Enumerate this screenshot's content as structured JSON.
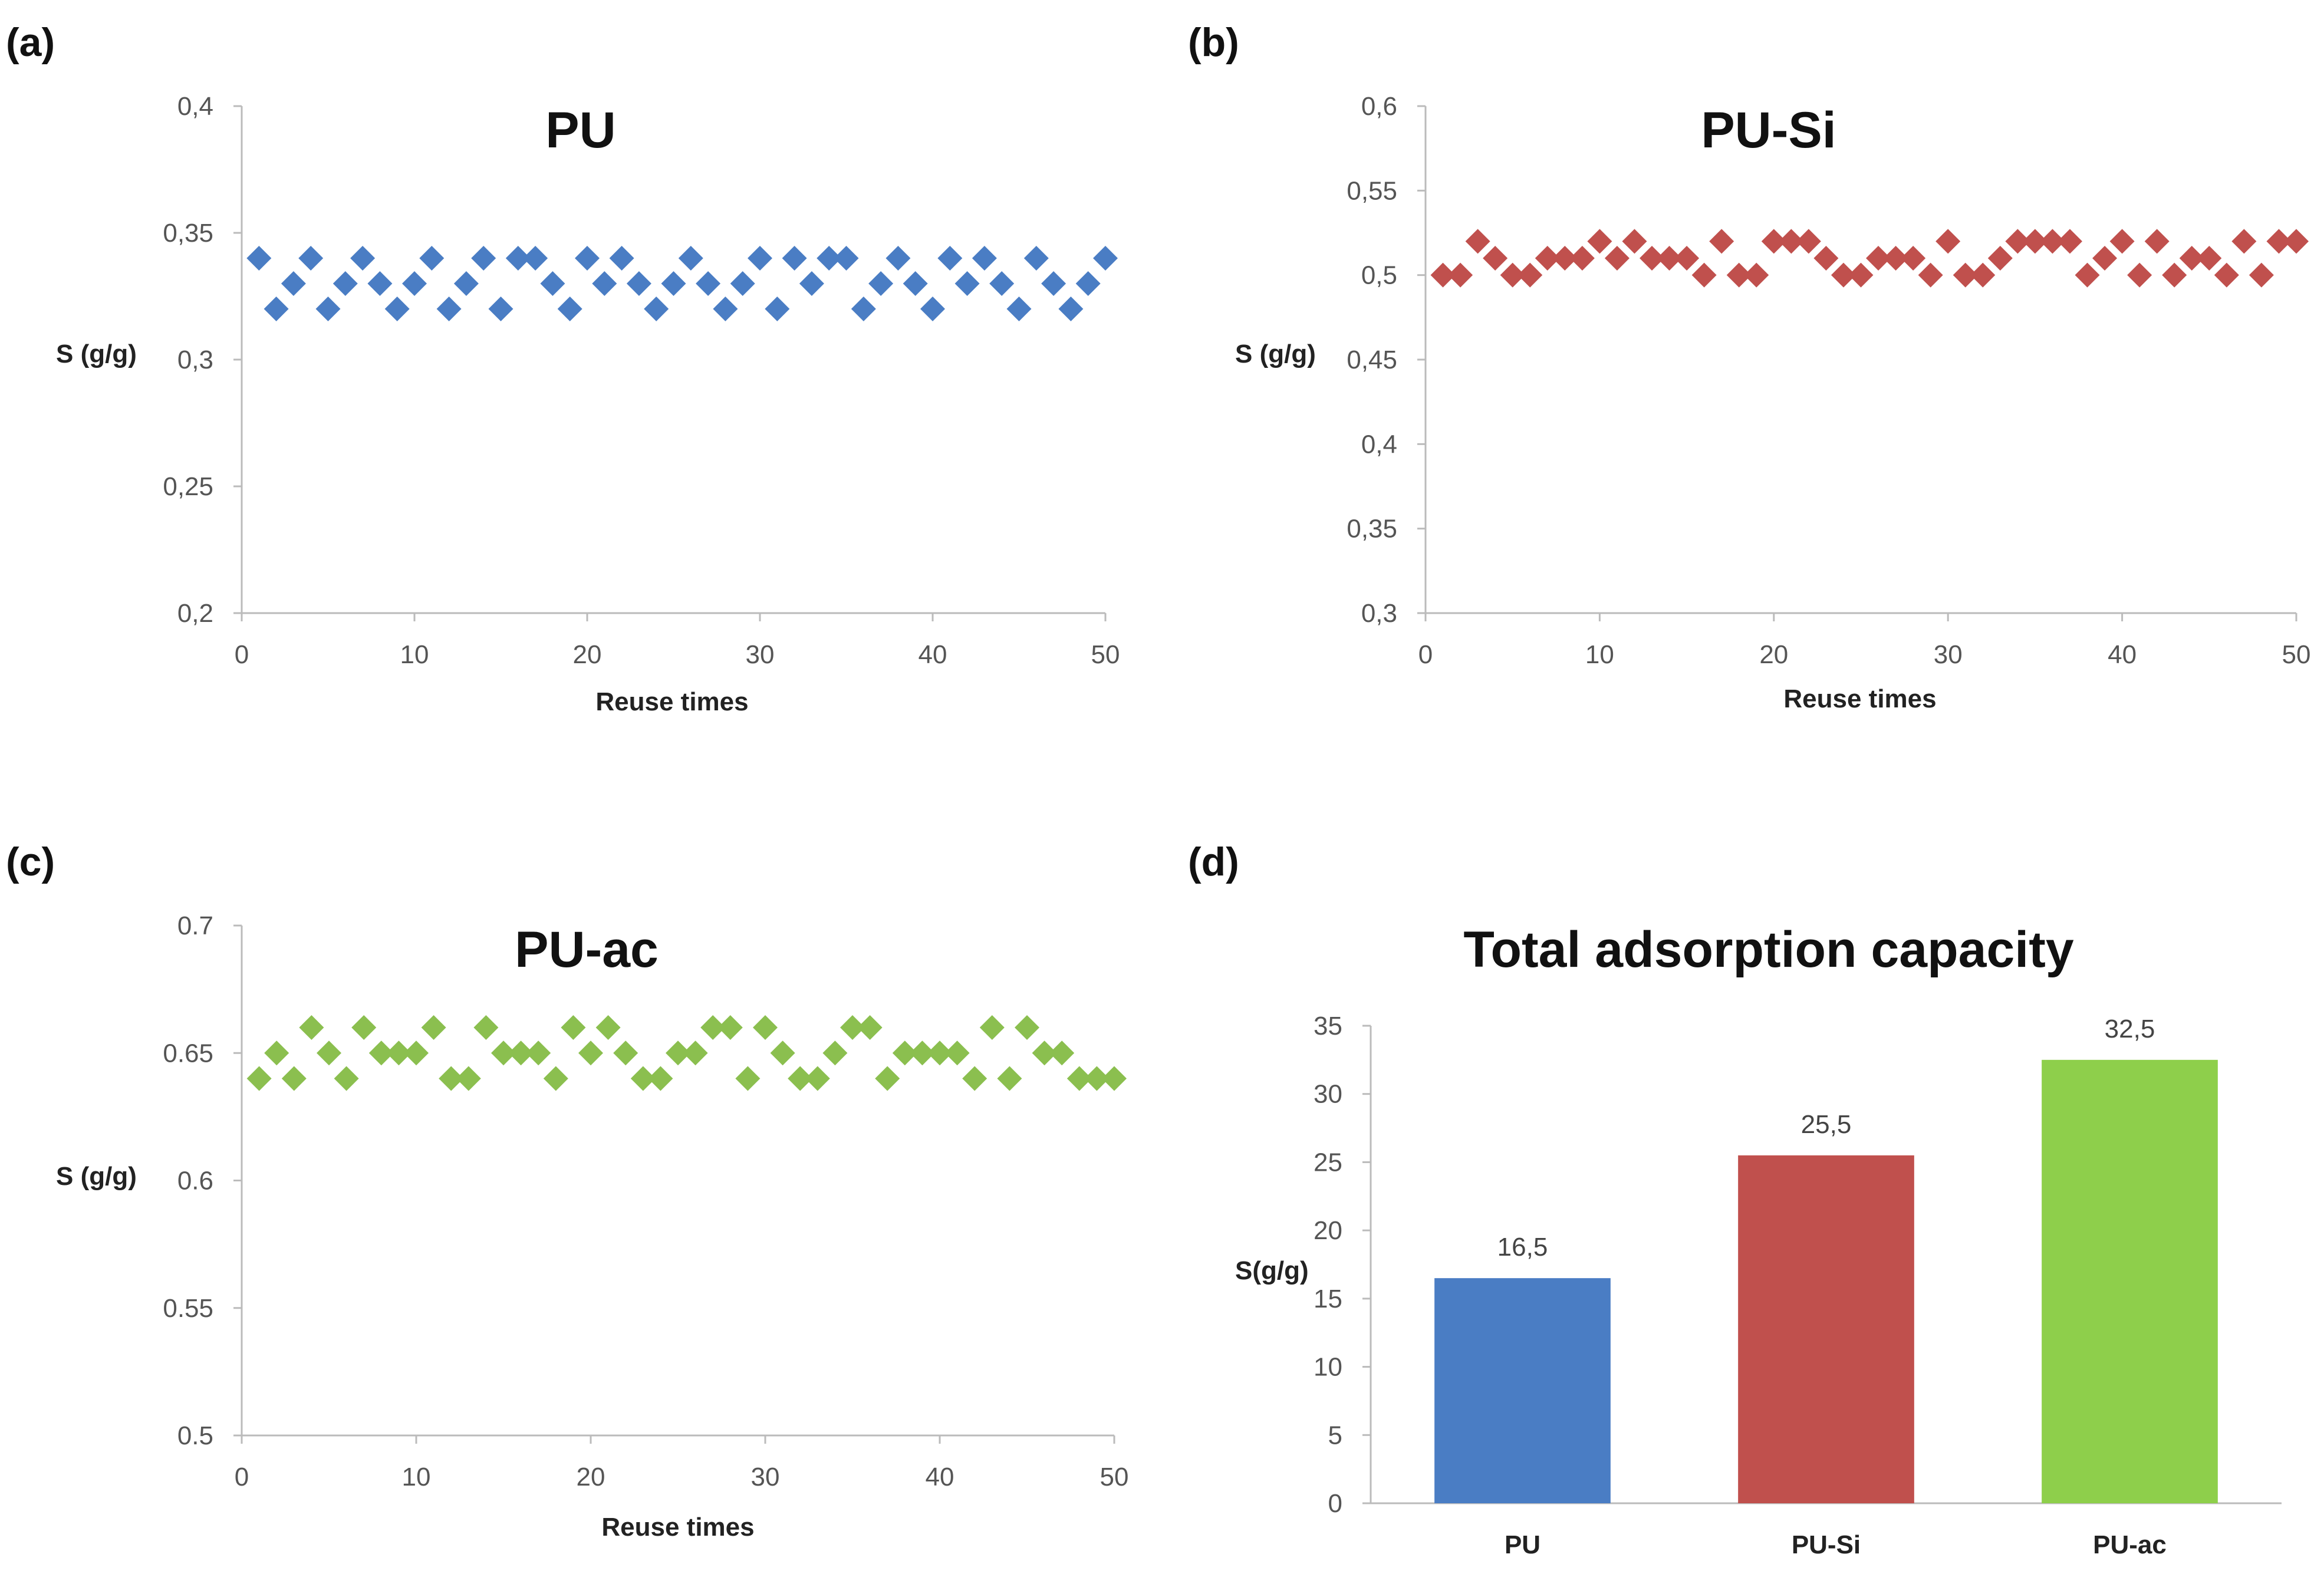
{
  "chart_data": [
    {
      "panel": "(a)",
      "type": "scatter",
      "title": "PU",
      "xlabel": "Reuse times",
      "ylabel": "S (g/g)",
      "xlim": [
        0,
        50
      ],
      "ylim": [
        0.2,
        0.4
      ],
      "xticks": [
        0,
        10,
        20,
        30,
        40,
        50
      ],
      "yticks": [
        0.2,
        0.25,
        0.3,
        0.35,
        0.4
      ],
      "yticklabels": [
        "0,2",
        "0,25",
        "0,3",
        "0,35",
        "0,4"
      ],
      "color": "#4a7dc4",
      "series": [
        {
          "name": "PU",
          "x": [
            1,
            2,
            3,
            4,
            5,
            6,
            7,
            8,
            9,
            10,
            11,
            12,
            13,
            14,
            15,
            16,
            17,
            18,
            19,
            20,
            21,
            22,
            23,
            24,
            25,
            26,
            27,
            28,
            29,
            30,
            31,
            32,
            33,
            34,
            35,
            36,
            37,
            38,
            39,
            40,
            41,
            42,
            43,
            44,
            45,
            46,
            47,
            48,
            49,
            50
          ],
          "values": [
            0.34,
            0.32,
            0.33,
            0.34,
            0.32,
            0.33,
            0.34,
            0.33,
            0.32,
            0.33,
            0.34,
            0.32,
            0.33,
            0.34,
            0.32,
            0.34,
            0.34,
            0.33,
            0.32,
            0.34,
            0.33,
            0.34,
            0.33,
            0.32,
            0.33,
            0.34,
            0.33,
            0.32,
            0.33,
            0.34,
            0.32,
            0.34,
            0.33,
            0.34,
            0.34,
            0.32,
            0.33,
            0.34,
            0.33,
            0.32,
            0.34,
            0.33,
            0.34,
            0.33,
            0.32,
            0.34,
            0.33,
            0.32,
            0.33,
            0.34
          ]
        }
      ]
    },
    {
      "panel": "(b)",
      "type": "scatter",
      "title": "PU-Si",
      "xlabel": "Reuse times",
      "ylabel": "S (g/g)",
      "xlim": [
        0,
        50
      ],
      "ylim": [
        0.3,
        0.6
      ],
      "xticks": [
        0,
        10,
        20,
        30,
        40,
        50
      ],
      "yticks": [
        0.3,
        0.35,
        0.4,
        0.45,
        0.5,
        0.55,
        0.6
      ],
      "yticklabels": [
        "0,3",
        "0,35",
        "0,4",
        "0,45",
        "0,5",
        "0,55",
        "0,6"
      ],
      "color": "#c0504d",
      "series": [
        {
          "name": "PU-Si",
          "x": [
            1,
            2,
            3,
            4,
            5,
            6,
            7,
            8,
            9,
            10,
            11,
            12,
            13,
            14,
            15,
            16,
            17,
            18,
            19,
            20,
            21,
            22,
            23,
            24,
            25,
            26,
            27,
            28,
            29,
            30,
            31,
            32,
            33,
            34,
            35,
            36,
            37,
            38,
            39,
            40,
            41,
            42,
            43,
            44,
            45,
            46,
            47,
            48,
            49,
            50
          ],
          "values": [
            0.5,
            0.5,
            0.52,
            0.51,
            0.5,
            0.5,
            0.51,
            0.51,
            0.51,
            0.52,
            0.51,
            0.52,
            0.51,
            0.51,
            0.51,
            0.5,
            0.52,
            0.5,
            0.5,
            0.52,
            0.52,
            0.52,
            0.51,
            0.5,
            0.5,
            0.51,
            0.51,
            0.51,
            0.5,
            0.52,
            0.5,
            0.5,
            0.51,
            0.52,
            0.52,
            0.52,
            0.52,
            0.5,
            0.51,
            0.52,
            0.5,
            0.52,
            0.5,
            0.51,
            0.51,
            0.5,
            0.52,
            0.5,
            0.52,
            0.52
          ]
        }
      ]
    },
    {
      "panel": "(c)",
      "type": "scatter",
      "title": "PU-ac",
      "xlabel": "Reuse times",
      "ylabel": "S (g/g)",
      "xlim": [
        0,
        50
      ],
      "ylim": [
        0.5,
        0.7
      ],
      "xticks": [
        0,
        10,
        20,
        30,
        40,
        50
      ],
      "yticks": [
        0.5,
        0.55,
        0.6,
        0.65,
        0.7
      ],
      "yticklabels": [
        "0.5",
        "0.55",
        "0.6",
        "0.65",
        "0.7"
      ],
      "color": "#8bbf4f",
      "series": [
        {
          "name": "PU-ac",
          "x": [
            1,
            2,
            3,
            4,
            5,
            6,
            7,
            8,
            9,
            10,
            11,
            12,
            13,
            14,
            15,
            16,
            17,
            18,
            19,
            20,
            21,
            22,
            23,
            24,
            25,
            26,
            27,
            28,
            29,
            30,
            31,
            32,
            33,
            34,
            35,
            36,
            37,
            38,
            39,
            40,
            41,
            42,
            43,
            44,
            45,
            46,
            47,
            48,
            49,
            50
          ],
          "values": [
            0.64,
            0.65,
            0.64,
            0.66,
            0.65,
            0.64,
            0.66,
            0.65,
            0.65,
            0.65,
            0.66,
            0.64,
            0.64,
            0.66,
            0.65,
            0.65,
            0.65,
            0.64,
            0.66,
            0.65,
            0.66,
            0.65,
            0.64,
            0.64,
            0.65,
            0.65,
            0.66,
            0.66,
            0.64,
            0.66,
            0.65,
            0.64,
            0.64,
            0.65,
            0.66,
            0.66,
            0.64,
            0.65,
            0.65,
            0.65,
            0.65,
            0.64,
            0.66,
            0.64,
            0.66,
            0.65,
            0.65,
            0.64,
            0.64,
            0.64
          ]
        }
      ]
    },
    {
      "panel": "(d)",
      "type": "bar",
      "title": "Total adsorption capacity",
      "xlabel": "",
      "ylabel": "S(g/g)",
      "ylim": [
        0,
        35
      ],
      "yticks": [
        0,
        5,
        10,
        15,
        20,
        25,
        30,
        35
      ],
      "yticklabels": [
        "0",
        "5",
        "10",
        "15",
        "20",
        "25",
        "30",
        "35"
      ],
      "categories": [
        "PU",
        "PU-Si",
        "PU-ac"
      ],
      "values": [
        16.5,
        25.5,
        32.5
      ],
      "value_labels": [
        "16,5",
        "25,5",
        "32,5"
      ],
      "colors": [
        "#4a7dc4",
        "#c0504d",
        "#8ecf4b"
      ]
    }
  ]
}
